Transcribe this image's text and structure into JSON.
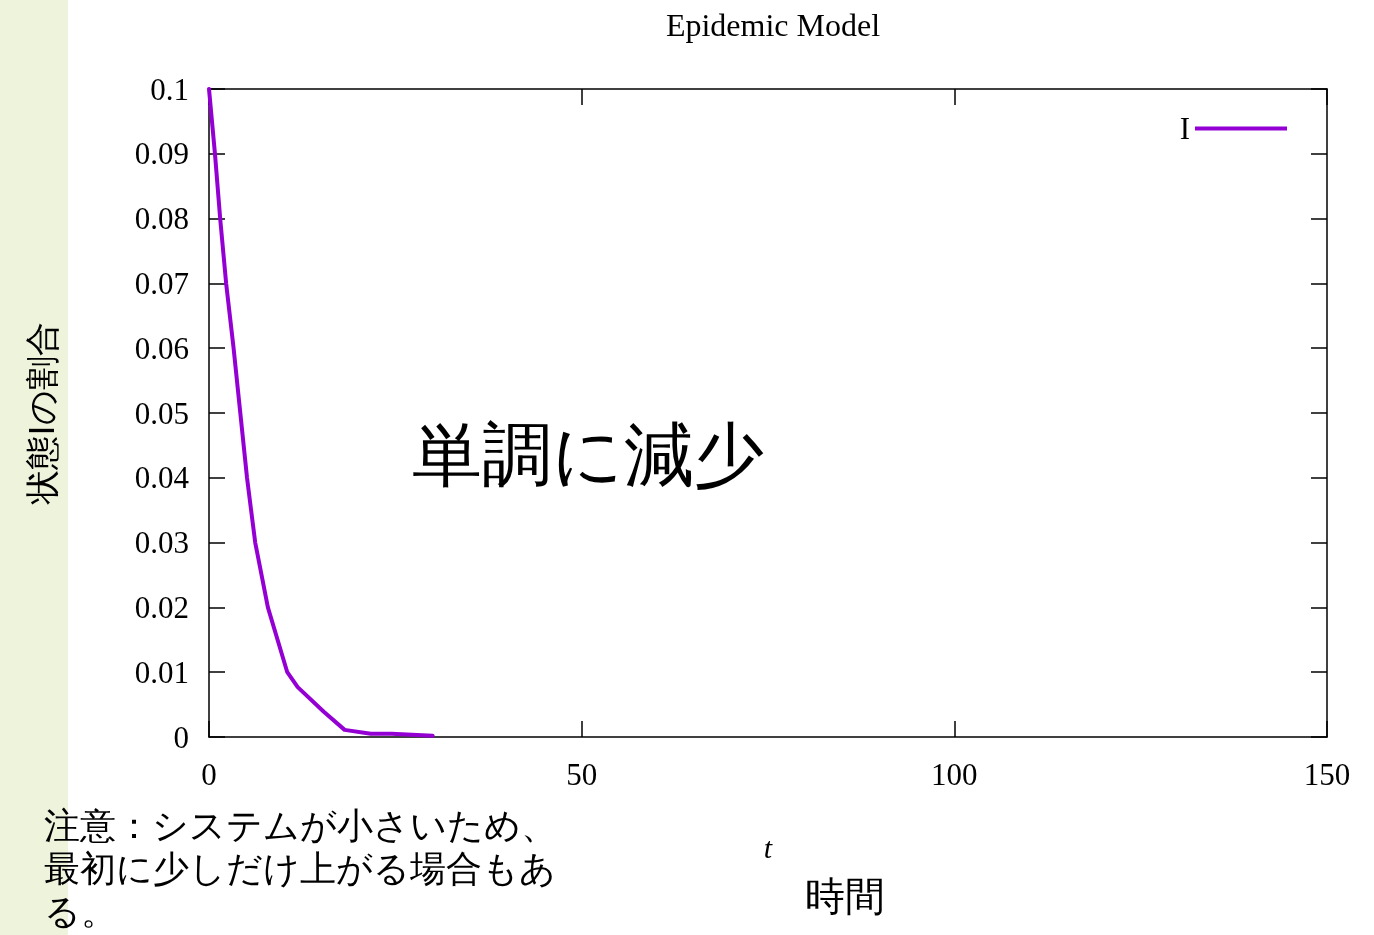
{
  "chart_data": {
    "type": "line",
    "title": "Epidemic Model",
    "xlabel": "t",
    "ylabel": "状態Iの割合",
    "x": [
      0,
      0.8,
      1.5,
      2.3,
      3.3,
      4.2,
      5.1,
      6.2,
      7.9,
      10.5,
      11.9,
      15.4,
      18.2,
      21.7,
      24.5,
      30
    ],
    "series": [
      {
        "name": "I",
        "color": "#9400d3",
        "values": [
          0.1,
          0.09,
          0.08,
          0.07,
          0.06,
          0.05,
          0.04,
          0.03,
          0.02,
          0.01,
          0.0077,
          0.0039,
          0.0011,
          0.0005,
          0.0005,
          0.0002
        ]
      }
    ],
    "xlim": [
      0,
      150
    ],
    "xticks": [
      0,
      50,
      100,
      150
    ],
    "ylim": [
      0,
      0.1
    ],
    "yticks": [
      0,
      0.01,
      0.02,
      0.03,
      0.04,
      0.05,
      0.06,
      0.07,
      0.08,
      0.09,
      0.1
    ],
    "annotations": [
      "単調に減少",
      "注意：システムが小さいため、最初に少しだけ上がる場合もある。",
      "時間"
    ],
    "grid": false,
    "legend": "top right",
    "marker": "none",
    "line_style": "solid"
  }
}
